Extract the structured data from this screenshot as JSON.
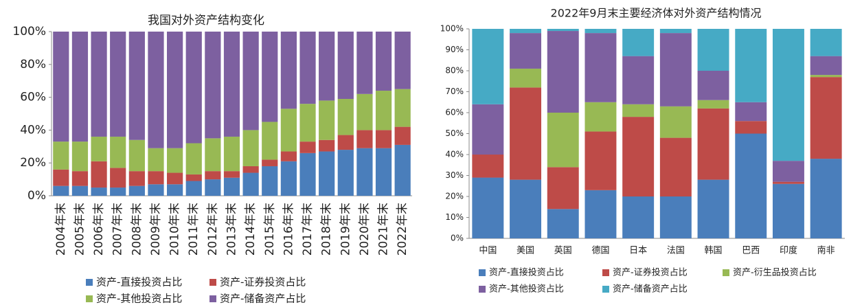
{
  "chart_data": [
    {
      "type": "stacked_bar",
      "title": "我国对外资产结构变化",
      "categories": [
        "2004年末",
        "2005年末",
        "2006年末",
        "2007年末",
        "2008年末",
        "2009年末",
        "2010年末",
        "2011年末",
        "2012年末",
        "2013年末",
        "2014年末",
        "2015年末",
        "2016年末",
        "2017年末",
        "2018年末",
        "2019年末",
        "2020年末",
        "2021年末",
        "2022年末"
      ],
      "series": [
        {
          "name": "资产-直接投资占比",
          "color": "#4a7ebb",
          "values": [
            6,
            6,
            5,
            5,
            6,
            7,
            7,
            9,
            10,
            11,
            14,
            18,
            21,
            26,
            27,
            28,
            29,
            29,
            31
          ]
        },
        {
          "name": "资产-证券投资占比",
          "color": "#be4b48",
          "values": [
            10,
            9,
            16,
            12,
            9,
            8,
            7,
            4,
            5,
            4,
            4,
            4,
            6,
            7,
            7,
            9,
            11,
            11,
            11
          ]
        },
        {
          "name": "资产-其他投资占比",
          "color": "#98b954",
          "values": [
            17,
            18,
            15,
            19,
            19,
            14,
            15,
            19,
            20,
            21,
            22,
            23,
            26,
            23,
            24,
            22,
            22,
            24,
            23
          ]
        },
        {
          "name": "资产-储备资产占比",
          "color": "#7d60a0",
          "values": [
            67,
            67,
            64,
            64,
            66,
            71,
            71,
            68,
            65,
            64,
            60,
            55,
            47,
            44,
            42,
            41,
            38,
            36,
            35
          ]
        }
      ],
      "ylim": [
        0,
        100
      ],
      "yticks": [
        {
          "value": 0,
          "label": "0%"
        },
        {
          "value": 20,
          "label": "20%"
        },
        {
          "value": 40,
          "label": "40%"
        },
        {
          "value": 60,
          "label": "60%"
        },
        {
          "value": 80,
          "label": "80%"
        },
        {
          "value": 100,
          "label": "100%"
        }
      ],
      "grid": false,
      "legend": "bottom"
    },
    {
      "type": "stacked_bar",
      "title": "2022年9月末主要经济体对外资产结构情况",
      "categories": [
        "中国",
        "美国",
        "英国",
        "德国",
        "日本",
        "法国",
        "韩国",
        "巴西",
        "印度",
        "南非"
      ],
      "series": [
        {
          "name": "资产-直接投资占比",
          "color": "#4a7ebb",
          "values": [
            29,
            28,
            14,
            23,
            20,
            20,
            28,
            50,
            26,
            38
          ]
        },
        {
          "name": "资产-证券投资占比",
          "color": "#be4b48",
          "values": [
            11,
            44,
            20,
            28,
            38,
            28,
            34,
            6,
            1,
            39
          ]
        },
        {
          "name": "资产-衍生品投资占比",
          "color": "#98b954",
          "values": [
            0,
            9,
            26,
            14,
            6,
            15,
            4,
            0,
            0,
            1
          ]
        },
        {
          "name": "资产-其他投资占比",
          "color": "#7d60a0",
          "values": [
            24,
            17,
            39,
            33,
            23,
            35,
            14,
            9,
            10,
            9
          ]
        },
        {
          "name": "资产-储备资产占比",
          "color": "#46aac5",
          "values": [
            36,
            2,
            1,
            2,
            13,
            2,
            20,
            35,
            63,
            13
          ]
        }
      ],
      "ylim": [
        0,
        100
      ],
      "yticks": [
        {
          "value": 0,
          "label": "0%"
        },
        {
          "value": 10,
          "label": "10%"
        },
        {
          "value": 20,
          "label": "20%"
        },
        {
          "value": 30,
          "label": "30%"
        },
        {
          "value": 40,
          "label": "40%"
        },
        {
          "value": 50,
          "label": "50%"
        },
        {
          "value": 60,
          "label": "60%"
        },
        {
          "value": 70,
          "label": "70%"
        },
        {
          "value": 80,
          "label": "80%"
        },
        {
          "value": 90,
          "label": "90%"
        },
        {
          "value": 100,
          "label": "100%"
        }
      ],
      "grid": false,
      "legend": "bottom"
    }
  ]
}
